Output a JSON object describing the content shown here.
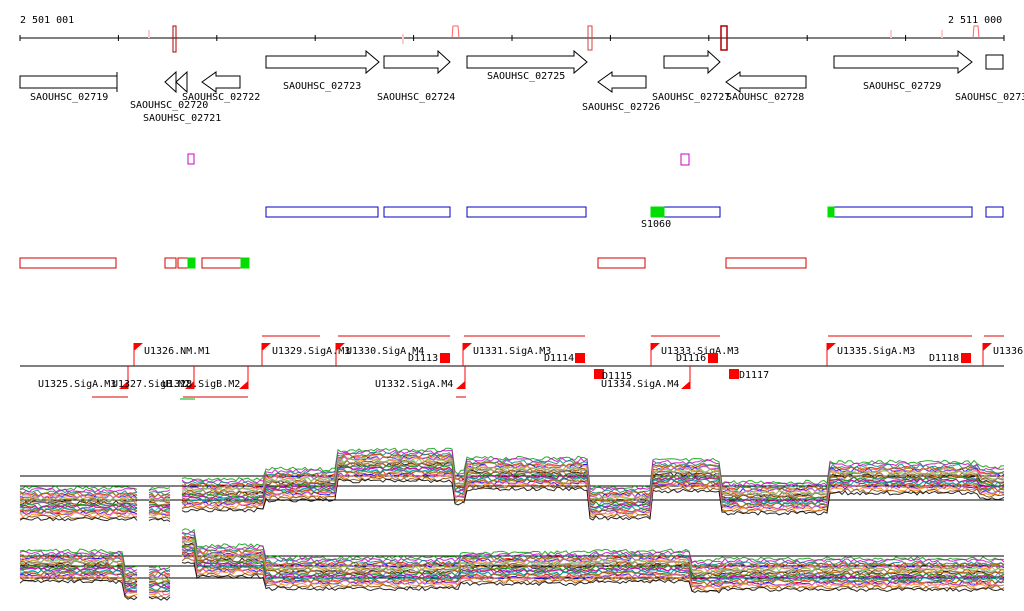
{
  "coords": {
    "start_label": "2 501 001",
    "end_label": "2 511 000"
  },
  "genes": [
    {
      "id": "SAOUHSC_02719"
    },
    {
      "id": "SAOUHSC_02720"
    },
    {
      "id": "SAOUHSC_02721"
    },
    {
      "id": "SAOUHSC_02722"
    },
    {
      "id": "SAOUHSC_02723"
    },
    {
      "id": "SAOUHSC_02724"
    },
    {
      "id": "SAOUHSC_02725"
    },
    {
      "id": "SAOUHSC_02726"
    },
    {
      "id": "SAOUHSC_02727"
    },
    {
      "id": "SAOUHSC_02728"
    },
    {
      "id": "SAOUHSC_02729"
    },
    {
      "id": "SAOUHSC_0273"
    }
  ],
  "features": {
    "s_label": "S1060"
  },
  "promoters_top": [
    {
      "id": "U1326.NM.M1"
    },
    {
      "id": "U1329.SigA.M3"
    },
    {
      "id": "U1330.SigA.M4"
    },
    {
      "id": "U1331.SigA.M3"
    },
    {
      "id": "U1333.SigA.M3"
    },
    {
      "id": "U1335.SigA.M3"
    },
    {
      "id": "U1336."
    }
  ],
  "promoters_bottom": [
    {
      "id": "U1325.SigA.M3"
    },
    {
      "id": "U1327.SigB.M2"
    },
    {
      "id": "U1328.SigB.M2"
    },
    {
      "id": "U1332.SigA.M4"
    },
    {
      "id": "U1334.SigA.M4"
    }
  ],
  "terminators": [
    {
      "id": "D1113"
    },
    {
      "id": "D1114"
    },
    {
      "id": "D1115"
    },
    {
      "id": "D1116"
    },
    {
      "id": "D1117"
    },
    {
      "id": "D1118"
    }
  ],
  "colors": {
    "red": "#ff0000",
    "dark_red": "#b00000",
    "blue": "#0000c0",
    "green": "#00dd00",
    "magenta": "#cc00cc",
    "axis": "#000000"
  }
}
